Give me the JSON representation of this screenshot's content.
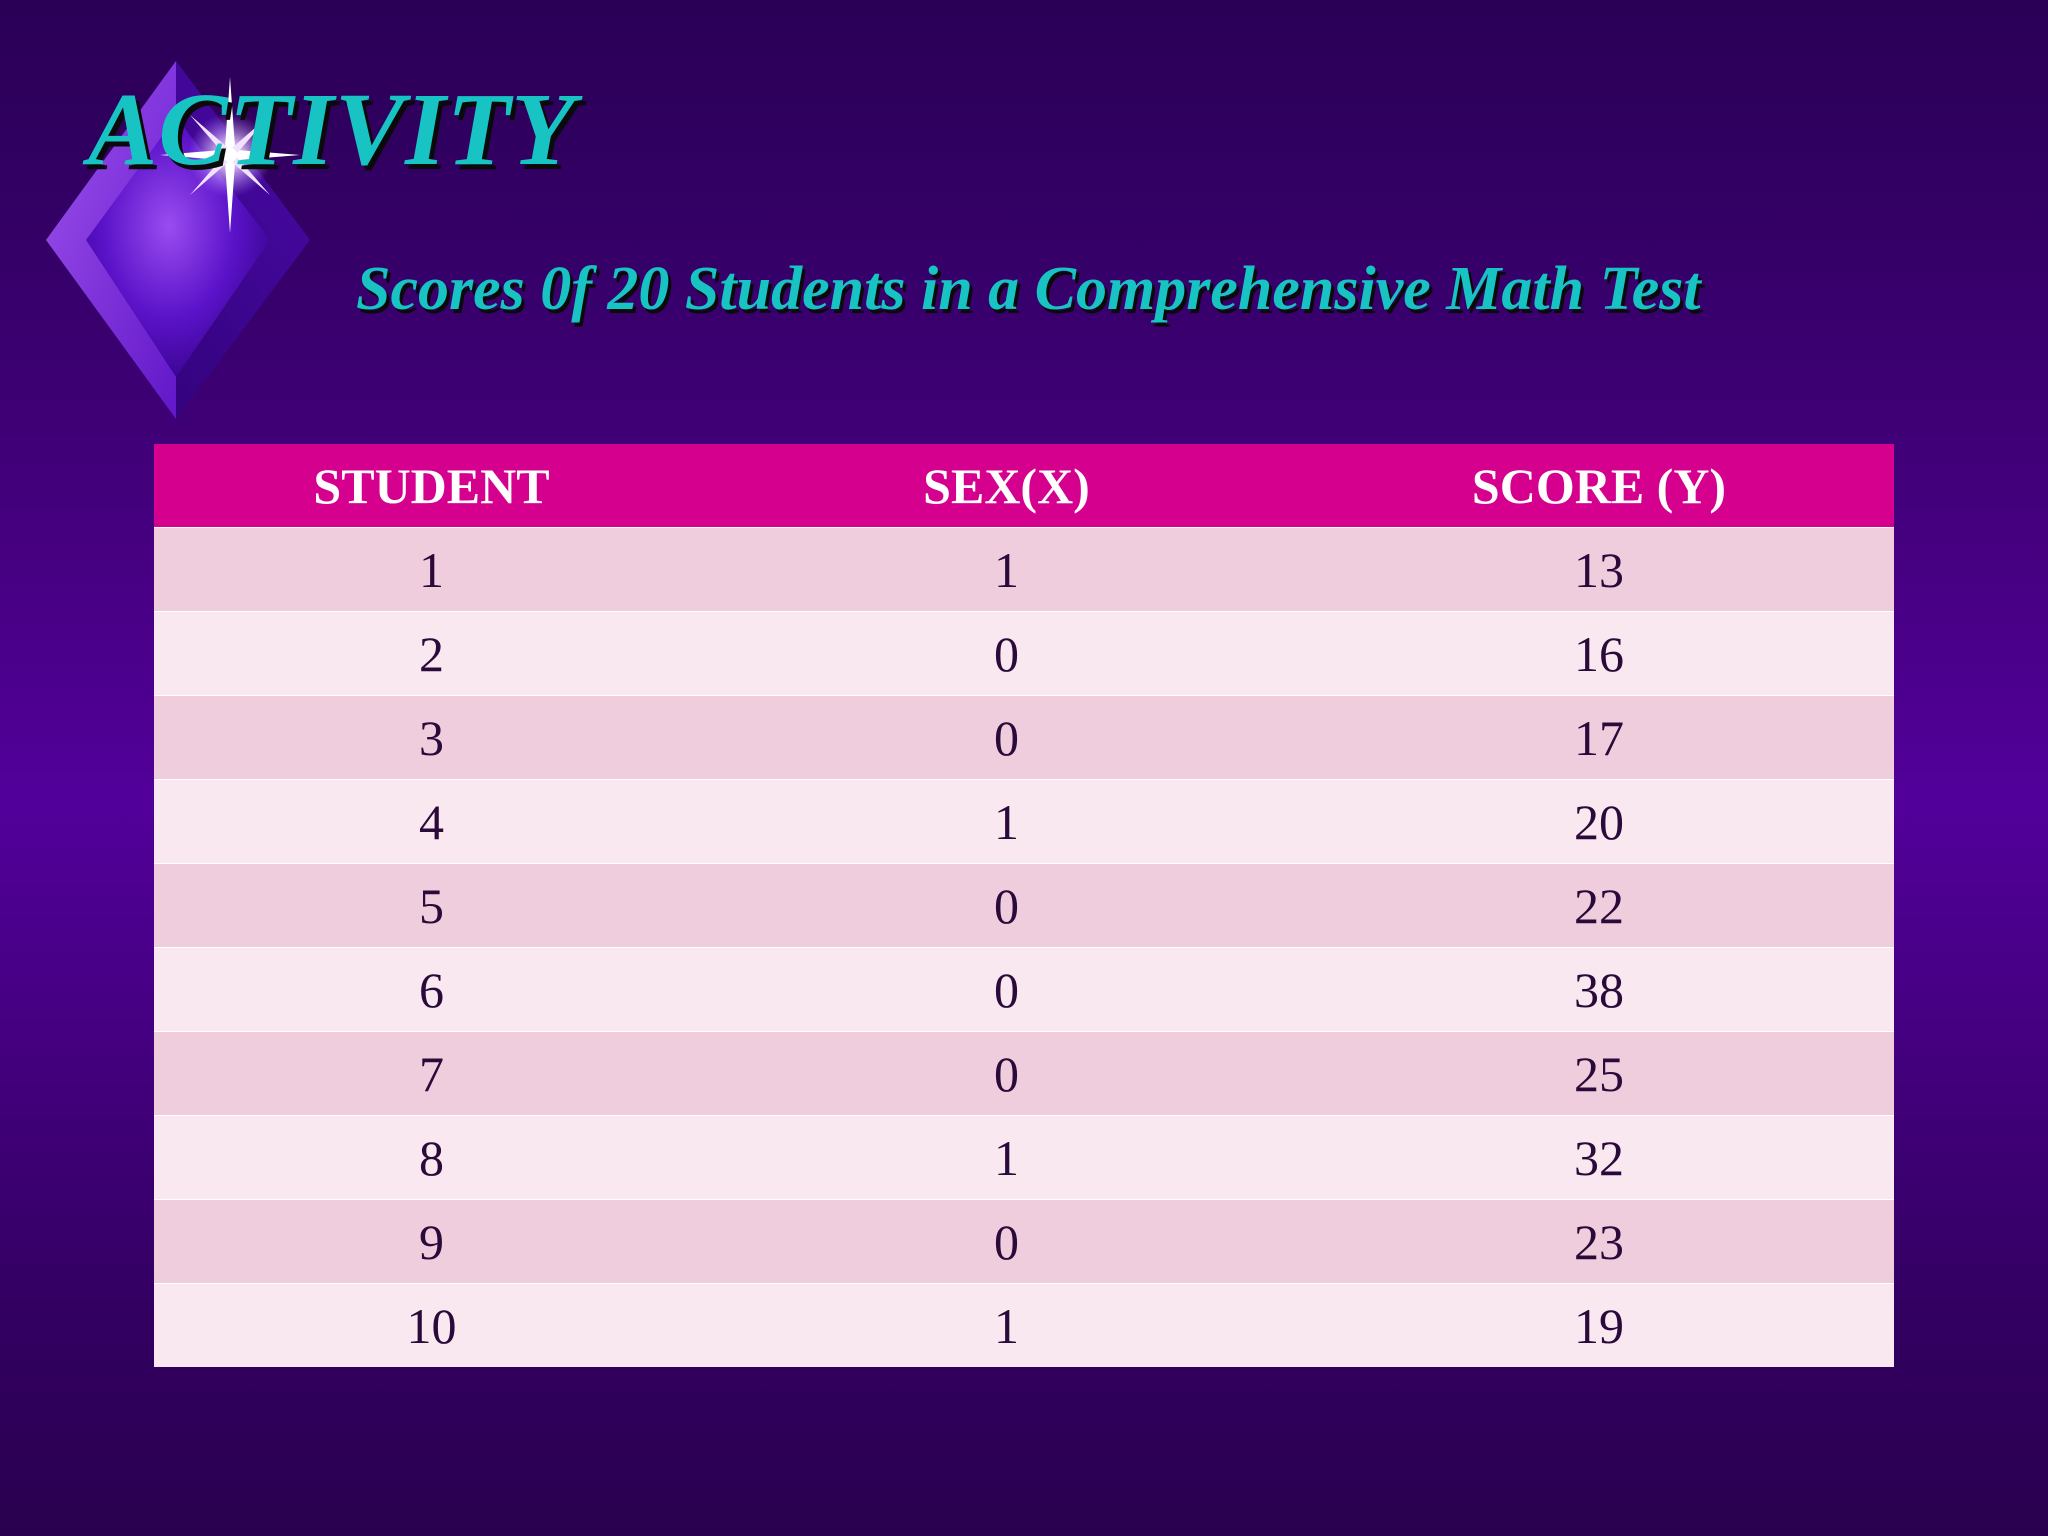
{
  "slide": {
    "title": "ACTIVITY",
    "subtitle": "Scores 0f 20 Students in a Comprehensive Math Test"
  },
  "table": {
    "headers": [
      "STUDENT",
      "SEX(X)",
      "SCORE (Y)"
    ],
    "rows": [
      [
        "1",
        "1",
        "13"
      ],
      [
        "2",
        "0",
        "16"
      ],
      [
        "3",
        "0",
        "17"
      ],
      [
        "4",
        "1",
        "20"
      ],
      [
        "5",
        "0",
        "22"
      ],
      [
        "6",
        "0",
        "38"
      ],
      [
        "7",
        "0",
        "25"
      ],
      [
        "8",
        "1",
        "32"
      ],
      [
        "9",
        "0",
        "23"
      ],
      [
        "10",
        "1",
        "19"
      ]
    ]
  },
  "colors": {
    "title_text": "#17c3c3",
    "header_bg": "#d6008f",
    "row_odd_bg": "#f0cddd",
    "row_even_bg": "#f9e8ef",
    "background_center": "#52009a"
  },
  "icons": {
    "ornament": "diamond-sparkle-icon"
  }
}
